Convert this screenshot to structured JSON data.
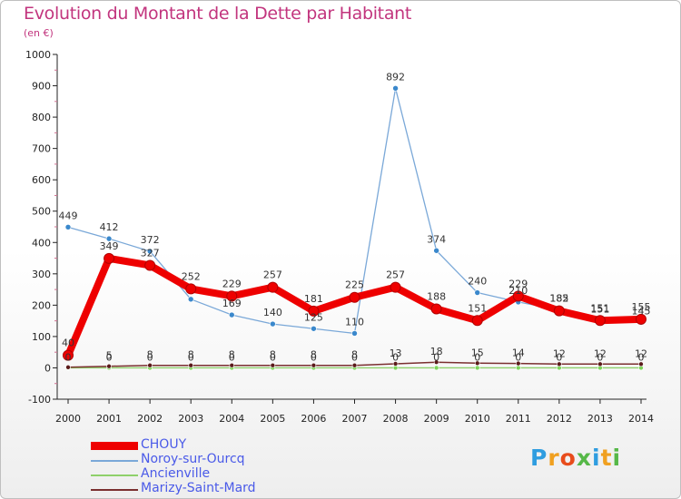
{
  "title": "Evolution du Montant de la Dette par Habitant",
  "subtitle": "(en €)",
  "brand": "Proxiti",
  "colors": {
    "title": "#c2357e",
    "axis": "#222222",
    "legend_text": "#4a5ae8",
    "chouy": "#ee0000",
    "noroy": "#7aa8d8",
    "ancienville": "#8ed06a",
    "marizy": "#7a2f2f"
  },
  "chart_data": {
    "type": "line",
    "categories": [
      "2000",
      "2001",
      "2002",
      "2003",
      "2004",
      "2005",
      "2006",
      "2007",
      "2008",
      "2009",
      "2010",
      "2011",
      "2012",
      "2013",
      "2014"
    ],
    "ylim": [
      -100,
      1000
    ],
    "yticks": [
      -100,
      0,
      100,
      200,
      300,
      400,
      500,
      600,
      700,
      800,
      900,
      1000
    ],
    "grid": false,
    "legend": "bottom-left",
    "series": [
      {
        "name": "CHOUY",
        "values": [
          40,
          349,
          327,
          252,
          229,
          257,
          181,
          225,
          257,
          188,
          151,
          229,
          182,
          151,
          155
        ],
        "labels": [
          "40",
          "349",
          "327",
          "252",
          "229",
          "257",
          "181",
          "225",
          "257",
          "188",
          "151",
          "229",
          "182",
          "151",
          "155"
        ]
      },
      {
        "name": "Noroy-sur-Ourcq",
        "values": [
          449,
          412,
          372,
          219,
          169,
          140,
          125,
          110,
          892,
          374,
          240,
          210,
          185,
          151,
          145
        ],
        "labels": [
          "449",
          "412",
          "372",
          "",
          "169",
          "140",
          "125",
          "110",
          "892",
          "374",
          "240",
          "210",
          "185",
          "151",
          "145"
        ]
      },
      {
        "name": "Ancienville",
        "values": [
          0,
          0,
          0,
          0,
          0,
          0,
          0,
          0,
          0,
          0,
          0,
          0,
          0,
          0,
          0
        ],
        "labels": [
          "0",
          "0",
          "0",
          "0",
          "0",
          "0",
          "0",
          "0",
          "0",
          "0",
          "0",
          "0",
          "0",
          "0",
          "0"
        ]
      },
      {
        "name": "Marizy-Saint-Mard",
        "values": [
          2,
          5,
          8,
          8,
          8,
          8,
          8,
          8,
          13,
          18,
          15,
          14,
          12,
          12,
          12
        ],
        "labels": [
          "",
          "5",
          "8",
          "8",
          "8",
          "8",
          "8",
          "8",
          "13",
          "18",
          "15",
          "14",
          "12",
          "12",
          "12"
        ]
      }
    ]
  }
}
